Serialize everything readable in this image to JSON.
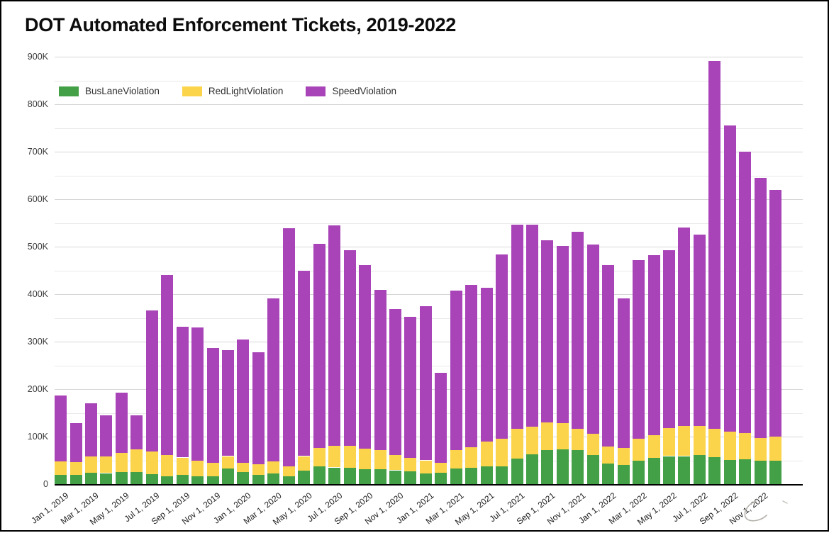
{
  "title": "DOT Automated Enforcement Tickets, 2019-2022",
  "colors": {
    "bus_lane": "#43a047",
    "red_light": "#fcd44b",
    "speed": "#a944b8",
    "axis_line": "#000000",
    "grid_major": "#d7d7d7",
    "grid_minor": "#e9e9e9",
    "text": "#1d1d1d"
  },
  "legend": [
    {
      "label": "BusLaneViolation",
      "color": "#43a047"
    },
    {
      "label": "RedLightViolation",
      "color": "#fcd44b"
    },
    {
      "label": "SpeedViolation",
      "color": "#a944b8"
    }
  ],
  "chart_data": {
    "type": "bar",
    "stacked": true,
    "title": "DOT Automated Enforcement Tickets, 2019-2022",
    "xlabel": "",
    "ylabel": "",
    "grid": true,
    "legend_position": "top-left",
    "x_tick_every": 2,
    "categories": [
      "Jan 1, 2019",
      "Feb 1, 2019",
      "Mar 1, 2019",
      "Apr 1, 2019",
      "May 1, 2019",
      "Jun 1, 2019",
      "Jul 1, 2019",
      "Aug 1, 2019",
      "Sep 1, 2019",
      "Oct 1, 2019",
      "Nov 1, 2019",
      "Dec 1, 2019",
      "Jan 1, 2020",
      "Feb 1, 2020",
      "Mar 1, 2020",
      "Apr 1, 2020",
      "May 1, 2020",
      "Jun 1, 2020",
      "Jul 1, 2020",
      "Aug 1, 2020",
      "Sep 1, 2020",
      "Oct 1, 2020",
      "Nov 1, 2020",
      "Dec 1, 2020",
      "Jan 1, 2021",
      "Feb 1, 2021",
      "Mar 1, 2021",
      "Apr 1, 2021",
      "May 1, 2021",
      "Jun 1, 2021",
      "Jul 1, 2021",
      "Aug 1, 2021",
      "Sep 1, 2021",
      "Oct 1, 2021",
      "Nov 1, 2021",
      "Dec 1, 2021",
      "Jan 1, 2022",
      "Feb 1, 2022",
      "Mar 1, 2022",
      "Apr 1, 2022",
      "May 1, 2022",
      "Jun 1, 2022",
      "Jul 1, 2022",
      "Aug 1, 2022",
      "Sep 1, 2022",
      "Oct 1, 2022",
      "Nov 1, 2022",
      "Dec 1, 2022"
    ],
    "series": [
      {
        "name": "BusLaneViolation",
        "color": "#43a047",
        "values": [
          20000,
          19000,
          24000,
          23000,
          25000,
          25000,
          21000,
          16000,
          19000,
          17000,
          16000,
          33000,
          26000,
          19000,
          23000,
          17000,
          29000,
          37000,
          35000,
          34000,
          32000,
          31000,
          29000,
          27000,
          23000,
          24000,
          33000,
          34000,
          37000,
          37000,
          54000,
          63000,
          72000,
          73000,
          71000,
          62000,
          43000,
          40000,
          49000,
          56000,
          59000,
          59000,
          61000,
          57000,
          51000,
          52000,
          49000,
          49000
        ]
      },
      {
        "name": "RedLightViolation",
        "color": "#fcd44b",
        "values": [
          28000,
          27000,
          34000,
          35000,
          41000,
          48000,
          48000,
          45000,
          37000,
          32000,
          29000,
          26000,
          19000,
          23000,
          25000,
          20000,
          30000,
          39000,
          46000,
          47000,
          43000,
          41000,
          32000,
          28000,
          27000,
          21000,
          38000,
          43000,
          52000,
          59000,
          62000,
          58000,
          58000,
          55000,
          46000,
          44000,
          36000,
          36000,
          47000,
          47000,
          59000,
          64000,
          61000,
          60000,
          60000,
          56000,
          48000,
          51000
        ]
      },
      {
        "name": "SpeedViolation",
        "color": "#a944b8",
        "values": [
          138000,
          83000,
          112000,
          87000,
          126000,
          72000,
          296000,
          380000,
          276000,
          281000,
          241000,
          223000,
          259000,
          236000,
          343000,
          502000,
          390000,
          430000,
          464000,
          411000,
          387000,
          337000,
          308000,
          297000,
          324000,
          190000,
          337000,
          343000,
          325000,
          388000,
          431000,
          425000,
          384000,
          374000,
          415000,
          399000,
          382000,
          315000,
          376000,
          379000,
          374000,
          417000,
          404000,
          774000,
          644000,
          592000,
          548000,
          520000
        ]
      }
    ],
    "y_axis": {
      "min": 0,
      "max": 900000,
      "tick_step": 100000,
      "minor_step": 50000,
      "tick_labels": [
        "0",
        "100K",
        "200K",
        "300K",
        "400K",
        "500K",
        "600K",
        "700K",
        "800K",
        "900K"
      ]
    }
  }
}
